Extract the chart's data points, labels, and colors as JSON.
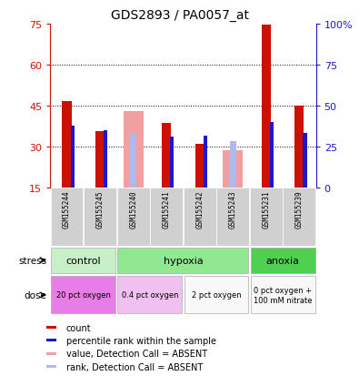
{
  "title": "GDS2893 / PA0057_at",
  "samples": [
    "GSM155244",
    "GSM155245",
    "GSM155240",
    "GSM155241",
    "GSM155242",
    "GSM155243",
    "GSM155231",
    "GSM155239"
  ],
  "count_values": [
    46.5,
    35.5,
    null,
    38.5,
    31.0,
    null,
    74.5,
    45.0
  ],
  "rank_values": [
    37.5,
    35.0,
    null,
    31.0,
    31.5,
    null,
    40.0,
    33.5
  ],
  "absent_value_bars": [
    null,
    null,
    43.0,
    null,
    null,
    28.5,
    null,
    null
  ],
  "absent_rank_bars": [
    null,
    null,
    32.5,
    null,
    null,
    28.5,
    null,
    null
  ],
  "stress_groups": [
    {
      "label": "control",
      "start": 0,
      "end": 2,
      "color": "#c8f0c8"
    },
    {
      "label": "hypoxia",
      "start": 2,
      "end": 6,
      "color": "#90e890"
    },
    {
      "label": "anoxia",
      "start": 6,
      "end": 8,
      "color": "#50d050"
    }
  ],
  "dose_groups": [
    {
      "label": "20 pct oxygen",
      "start": 0,
      "end": 2,
      "color": "#e87de8"
    },
    {
      "label": "0.4 pct oxygen",
      "start": 2,
      "end": 4,
      "color": "#f0c0f0"
    },
    {
      "label": "2 pct oxygen",
      "start": 4,
      "end": 6,
      "color": "#f8f8f8"
    },
    {
      "label": "0 pct oxygen +\n100 mM nitrate",
      "start": 6,
      "end": 8,
      "color": "#f8f8f8"
    }
  ],
  "ylim_left": [
    15,
    75
  ],
  "ylim_right": [
    0,
    100
  ],
  "yticks_left": [
    15,
    30,
    45,
    60,
    75
  ],
  "yticks_right": [
    0,
    25,
    50,
    75,
    100
  ],
  "ytick_labels_right": [
    "0",
    "25",
    "50",
    "75",
    "100%"
  ],
  "color_count": "#cc1100",
  "color_rank": "#1a1acc",
  "color_absent_value": "#f0a0a0",
  "color_absent_rank": "#b0b8f0",
  "background_color": "#ffffff",
  "left_axis_color": "#cc1100",
  "right_axis_color": "#1a1acc",
  "grid_lines": [
    30,
    45,
    60
  ],
  "legend_items": [
    {
      "color": "#cc1100",
      "label": "count"
    },
    {
      "color": "#1a1acc",
      "label": "percentile rank within the sample"
    },
    {
      "color": "#f0a0a0",
      "label": "value, Detection Call = ABSENT"
    },
    {
      "color": "#b0b8f0",
      "label": "rank, Detection Call = ABSENT"
    }
  ]
}
